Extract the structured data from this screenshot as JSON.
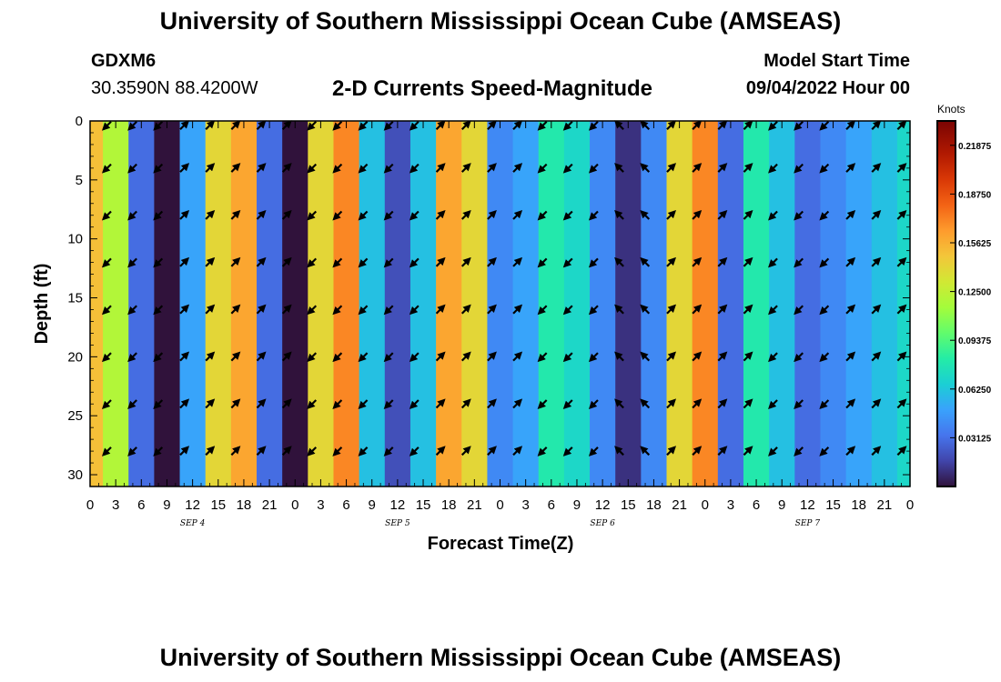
{
  "chart_data": {
    "type": "heatmap",
    "title": "University of Southern Mississippi Ocean Cube (AMSEAS)",
    "subtitle": "2-D Currents Speed-Magnitude",
    "station": "GDXM6",
    "location": "30.3590N  88.4200W",
    "model_start_label": "Model Start Time",
    "model_start": "09/04/2022 Hour 00",
    "xlabel": "Forecast Time(Z)",
    "ylabel": "Depth (ft)",
    "x_ticks": [
      "0",
      "3",
      "6",
      "9",
      "12",
      "15",
      "18",
      "21",
      "0",
      "3",
      "6",
      "9",
      "12",
      "15",
      "18",
      "21",
      "0",
      "3",
      "6",
      "9",
      "12",
      "15",
      "18",
      "21",
      "0",
      "3",
      "6",
      "9",
      "12",
      "15",
      "18",
      "21",
      "0"
    ],
    "date_labels": [
      {
        "label": "SEP 4",
        "hour": 12
      },
      {
        "label": "SEP 5",
        "hour": 36
      },
      {
        "label": "SEP 6",
        "hour": 60
      },
      {
        "label": "SEP 7",
        "hour": 84
      }
    ],
    "xlim": [
      0,
      96
    ],
    "y_ticks": [
      0,
      5,
      10,
      15,
      20,
      25,
      30
    ],
    "ylim": [
      0,
      31
    ],
    "colorbar": {
      "title": "Knots",
      "ticks": [
        "0.21875",
        "0.18750",
        "0.15625",
        "0.12500",
        "0.09375",
        "0.06250",
        "0.03125"
      ],
      "range": [
        0,
        0.234375
      ]
    },
    "column_speeds_knots": [
      0.15,
      0.12,
      0.03,
      0.0,
      0.05,
      0.14,
      0.16,
      0.03,
      0.0,
      0.14,
      0.17,
      0.06,
      0.02,
      0.06,
      0.16,
      0.14,
      0.04,
      0.05,
      0.08,
      0.07,
      0.04,
      0.01,
      0.04,
      0.14,
      0.17,
      0.03,
      0.08,
      0.06,
      0.03,
      0.04,
      0.05,
      0.06,
      0.07
    ],
    "vector_depths_ft": [
      0,
      4,
      8,
      12,
      16,
      20,
      24,
      28
    ],
    "vector_times_h": [
      2,
      5,
      8,
      11,
      14,
      17,
      20,
      23,
      26,
      29,
      32,
      35,
      38,
      41,
      44,
      47,
      50,
      53,
      56,
      59,
      62,
      65,
      68,
      71,
      74,
      77,
      80,
      83,
      86,
      89,
      92,
      95
    ],
    "vector_directions_deg": [
      225,
      225,
      225,
      45,
      45,
      45,
      45,
      45,
      225,
      225,
      225,
      225,
      225,
      45,
      45,
      45,
      45,
      225,
      225,
      225,
      315,
      315,
      45,
      45,
      45,
      45,
      225,
      225,
      225,
      45,
      45,
      45
    ]
  }
}
